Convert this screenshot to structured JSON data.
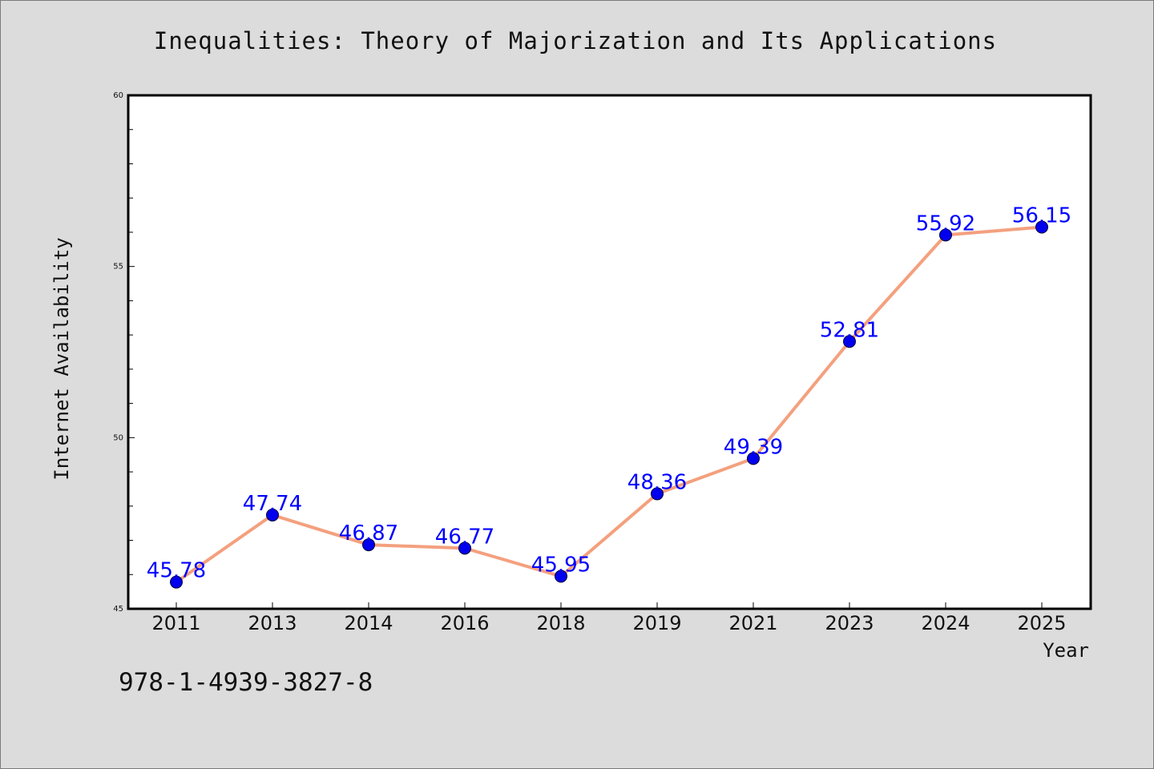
{
  "title": "Inequalities: Theory of Majorization and Its Applications",
  "isbn": "978-1-4939-3827-8",
  "chart_data": {
    "type": "line",
    "title": "Inequalities: Theory of Majorization and Its Applications",
    "xlabel": "Year",
    "ylabel": "Internet Availability",
    "categories": [
      "2011",
      "2013",
      "2014",
      "2016",
      "2018",
      "2019",
      "2021",
      "2023",
      "2024",
      "2025"
    ],
    "series": [
      {
        "values": [
          45.78,
          47.74,
          46.87,
          46.77,
          45.95,
          48.36,
          49.39,
          52.81,
          55.92,
          56.15
        ],
        "labels": [
          "45.78",
          "47.74",
          "46.87",
          "46.77",
          "45.95",
          "48.36",
          "49.39",
          "52.81",
          "55.92",
          "56.15"
        ]
      }
    ],
    "ylim": [
      45,
      60
    ],
    "yticks": [
      "45",
      "50",
      "55",
      "60"
    ],
    "y_minor_step": 1,
    "grid": false,
    "line_color": "#f4a07e",
    "marker_color": "#0000ee",
    "label_color": "#0000ff"
  }
}
